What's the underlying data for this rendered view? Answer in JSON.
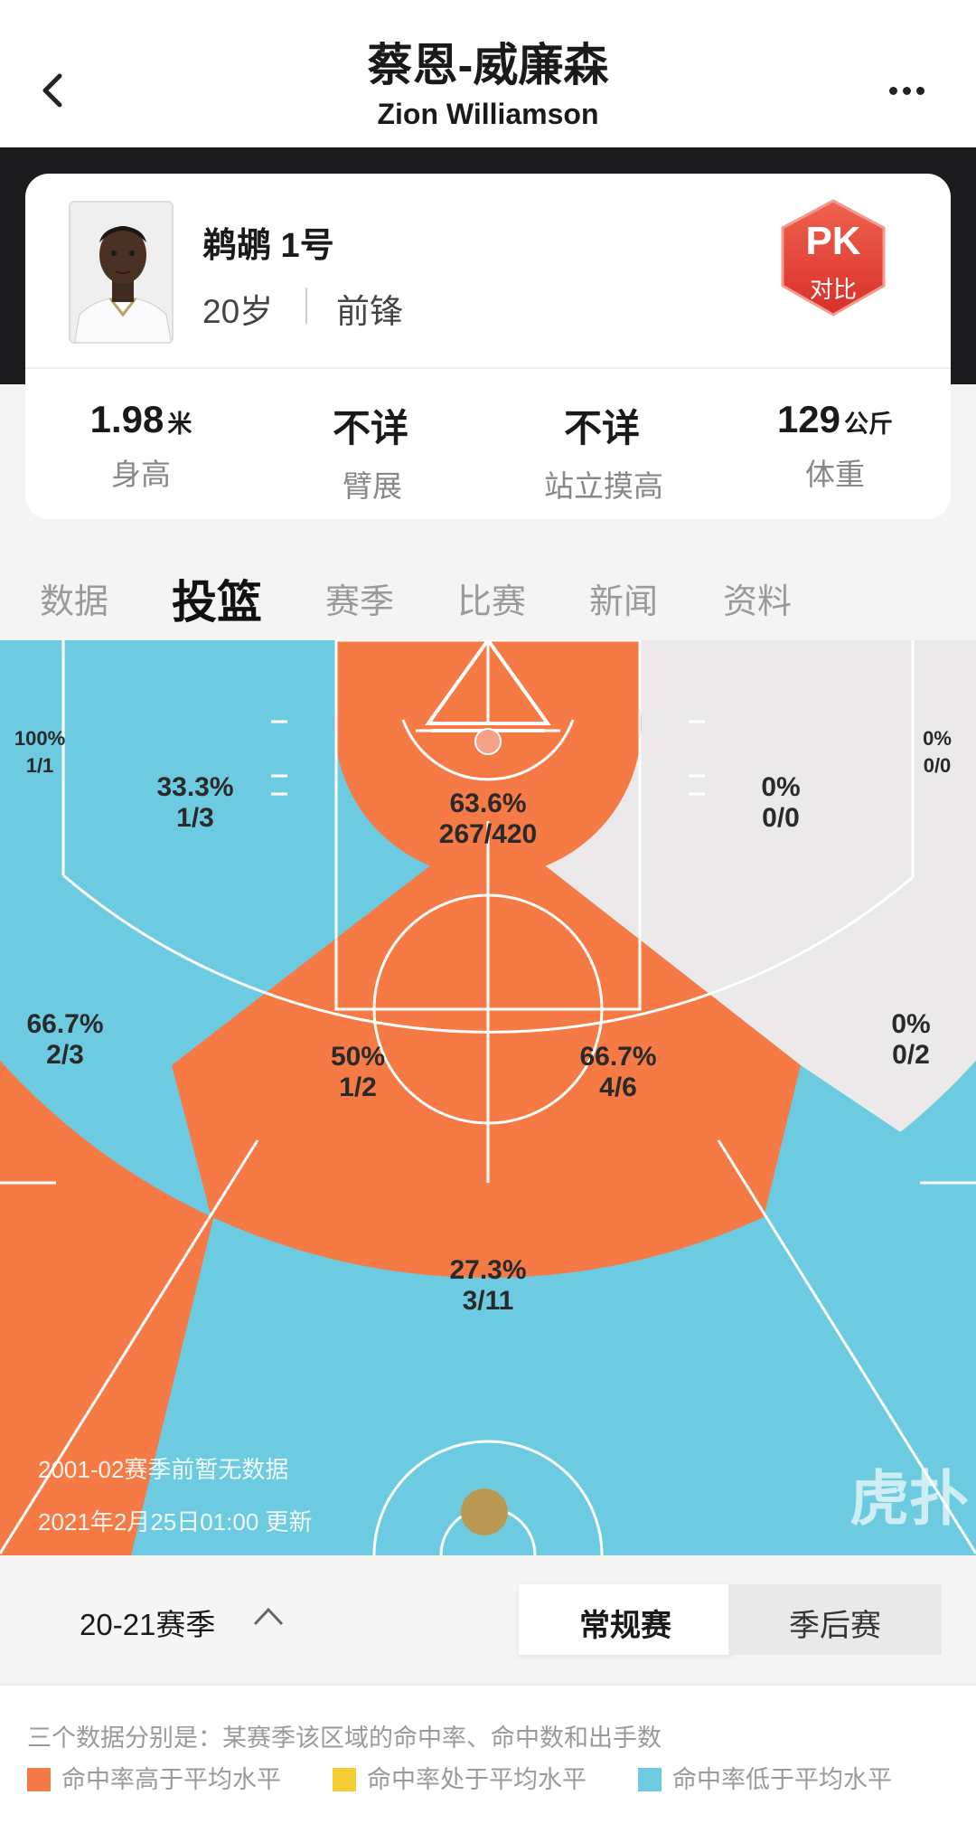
{
  "header": {
    "title_zh": "蔡恩-威廉森",
    "title_en": "Zion Williamson"
  },
  "profile": {
    "name": "鹈鹕 1号",
    "age": "20岁",
    "position": "前锋",
    "pk_label": "PK",
    "pk_sub": "对比"
  },
  "stats": [
    {
      "value": "1.98",
      "unit": "米",
      "label": "身高"
    },
    {
      "value": "不详",
      "unit": "",
      "label": "臂展"
    },
    {
      "value": "不详",
      "unit": "",
      "label": "站立摸高"
    },
    {
      "value": "129",
      "unit": "公斤",
      "label": "体重"
    }
  ],
  "tabs": [
    "数据",
    "投篮",
    "赛季",
    "比赛",
    "新闻",
    "资料"
  ],
  "active_tab": "投篮",
  "zones": {
    "left_corner": {
      "pct": "100%",
      "made": "1/1"
    },
    "left_baseline_mid": {
      "pct": "33.3%",
      "made": "1/3"
    },
    "paint": {
      "pct": "63.6%",
      "made": "267/420"
    },
    "right_baseline_mid": {
      "pct": "0%",
      "made": "0/0"
    },
    "right_corner": {
      "pct": "0%",
      "made": "0/0"
    },
    "left_wing_three": {
      "pct": "66.7%",
      "made": "2/3"
    },
    "left_elbow": {
      "pct": "50%",
      "made": "1/2"
    },
    "right_elbow": {
      "pct": "66.7%",
      "made": "4/6"
    },
    "right_wing_three": {
      "pct": "0%",
      "made": "0/2"
    },
    "top_three": {
      "pct": "27.3%",
      "made": "3/11"
    }
  },
  "court_notes": {
    "no_data": "2001-02赛季前暂无数据",
    "updated": "2021年2月25日01:00 更新",
    "watermark": "虎扑"
  },
  "season": {
    "label": "20-21赛季",
    "regular": "常规赛",
    "playoff": "季后赛"
  },
  "legend": {
    "description": "三个数据分别是：某赛季该区域的命中率、命中数和出手数",
    "items": [
      {
        "label": "命中率高于平均水平",
        "color": "#f57a45"
      },
      {
        "label": "命中率处于平均水平",
        "color": "#f6cc35"
      },
      {
        "label": "命中率低于平均水平",
        "color": "#6ccbe0"
      }
    ]
  },
  "colors": {
    "above": "#f57a45",
    "below": "#6ccbe0",
    "none": "#ebe9ea"
  }
}
